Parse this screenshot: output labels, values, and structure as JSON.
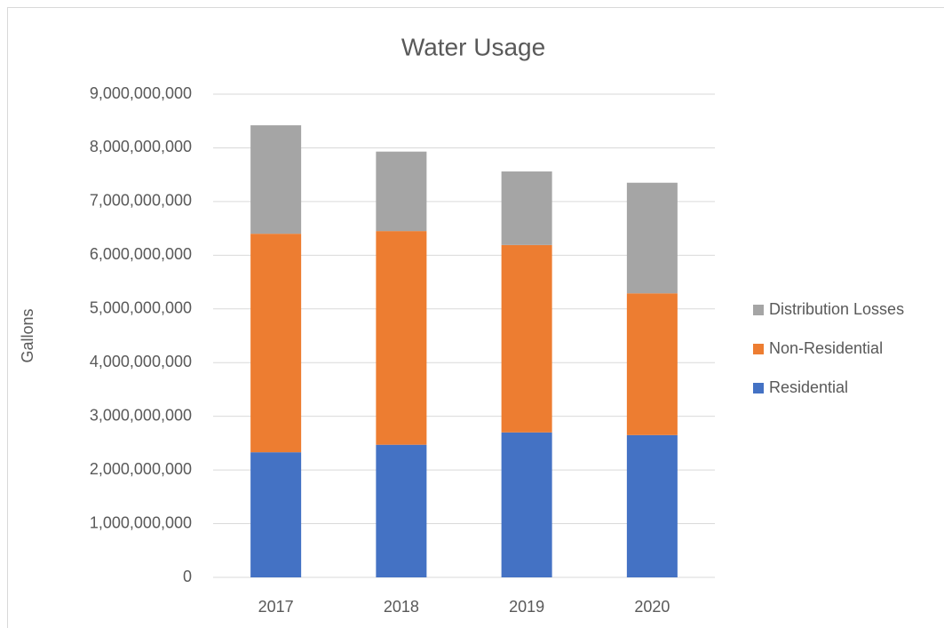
{
  "chart_data": {
    "type": "stacked_bar",
    "title": "Water Usage",
    "y_label": "Gallons",
    "categories": [
      "2017",
      "2018",
      "2019",
      "2020"
    ],
    "series": [
      {
        "name": "Residential",
        "color": "#4472c4",
        "values": [
          2330000000,
          2470000000,
          2700000000,
          2650000000
        ]
      },
      {
        "name": "Non-Residential",
        "color": "#ed7d31",
        "values": [
          4070000000,
          3980000000,
          3490000000,
          2640000000
        ]
      },
      {
        "name": "Distribution Losses",
        "color": "#a5a5a5",
        "values": [
          2020000000,
          1480000000,
          1370000000,
          2060000000
        ]
      }
    ],
    "ylim": [
      0,
      9000000000
    ],
    "yticks": [
      0,
      {
        "value": 1000000000,
        "label": "1,000,000,000"
      },
      {
        "value": 2000000000,
        "label": "2,000,000,000"
      },
      {
        "value": 3000000000,
        "label": "3,000,000,000"
      },
      {
        "value": 4000000000,
        "label": "4,000,000,000"
      },
      {
        "value": 5000000000,
        "label": "5,000,000,000"
      },
      {
        "value": 6000000000,
        "label": "6,000,000,000"
      },
      {
        "value": 7000000000,
        "label": "7,000,000,000"
      },
      {
        "value": 8000000000,
        "label": "8,000,000,000"
      },
      {
        "value": 9000000000,
        "label": "9,000,000,000"
      }
    ],
    "grid": true,
    "legend": "right"
  }
}
